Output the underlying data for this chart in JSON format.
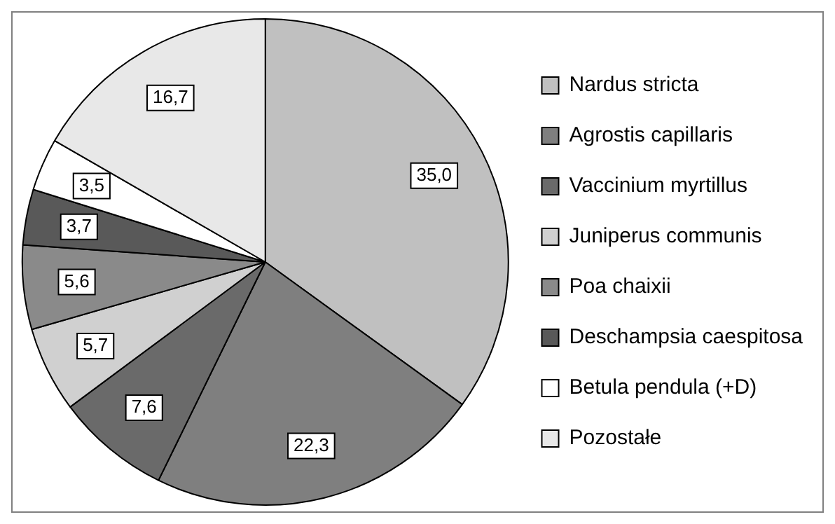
{
  "chart_data": {
    "type": "pie",
    "categories": [
      "Nardus stricta",
      "Agrostis capillaris",
      "Vaccinium myrtillus",
      "Juniperus communis",
      "Poa chaixii",
      "Deschampsia caespitosa",
      "Betula pendula (+D)",
      "Pozostałe"
    ],
    "values": [
      35.0,
      22.3,
      7.6,
      5.7,
      5.6,
      3.7,
      3.5,
      16.7
    ],
    "value_labels": [
      "35,0",
      "22,3",
      "7,6",
      "5,7",
      "5,6",
      "3,7",
      "3,5",
      "16,7"
    ],
    "colors": [
      "#c0c0c0",
      "#7f7f7f",
      "#6a6a6a",
      "#d0d0d0",
      "#8a8a8a",
      "#595959",
      "#ffffff",
      "#e8e8e8"
    ],
    "legend": "right"
  }
}
